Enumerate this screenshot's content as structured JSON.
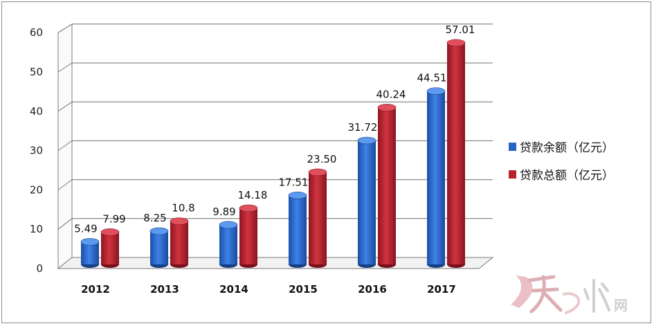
{
  "chart_data": {
    "type": "bar",
    "categories": [
      "2012",
      "2013",
      "2014",
      "2015",
      "2016",
      "2017"
    ],
    "series": [
      {
        "name": "贷款余额（亿元）",
        "values": [
          5.49,
          8.25,
          9.89,
          17.51,
          31.72,
          44.51
        ],
        "labels": [
          "5.49",
          "8.25",
          "9.89",
          "17.51",
          "31.72",
          "44.51"
        ],
        "color": "#2a62c8"
      },
      {
        "name": "贷款总额（亿元）",
        "values": [
          7.99,
          10.8,
          14.18,
          23.5,
          40.24,
          57.01
        ],
        "labels": [
          "7.99",
          "10.8",
          "14.18",
          "23.50",
          "40.24",
          "57.01"
        ],
        "color": "#b8222c"
      }
    ],
    "yticks": [
      "0",
      "10",
      "20",
      "30",
      "40",
      "50",
      "60"
    ],
    "ylim": [
      0,
      60
    ],
    "grid": true,
    "legend_position": "right",
    "style": "3d-cylinder"
  },
  "watermark": {
    "text": "天水网"
  }
}
